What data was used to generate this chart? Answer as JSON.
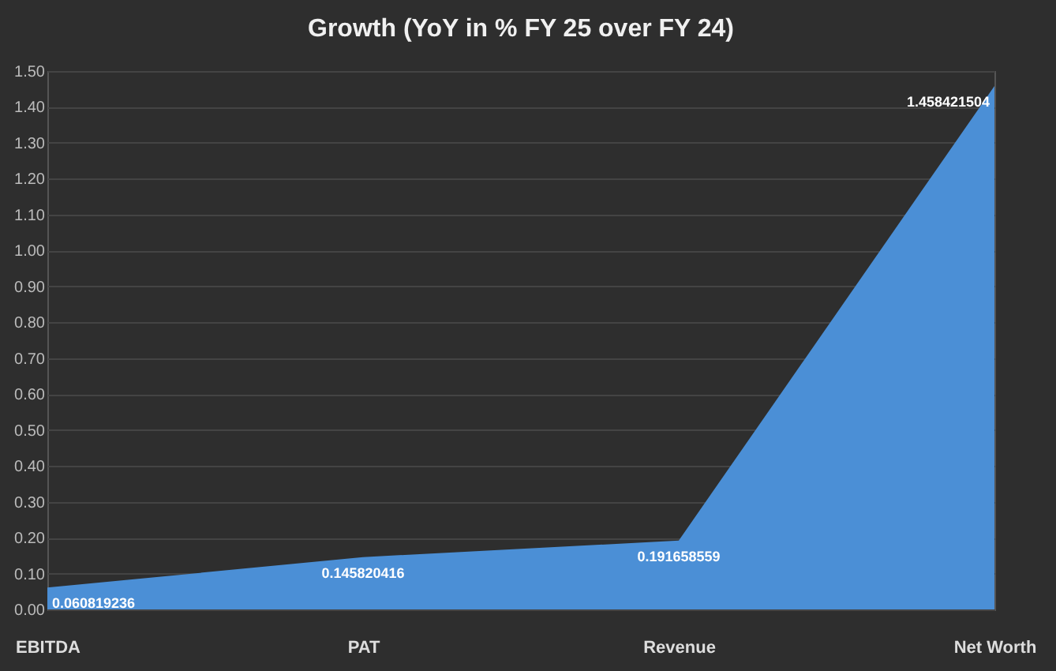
{
  "chart_data": {
    "type": "area",
    "title": "Growth (YoY in % FY 25 over FY 24)",
    "categories": [
      "EBITDA",
      "PAT",
      "Revenue",
      "Net Worth"
    ],
    "values": [
      0.060819236,
      0.145820416,
      0.191658559,
      1.458421504
    ],
    "color": "#4b8fd6",
    "data_labels": true,
    "grid": "y",
    "ylim": [
      0,
      1.5
    ],
    "yticks": [
      {
        "value": 0,
        "label": "0.00"
      },
      {
        "value": 0.1,
        "label": "0.10"
      },
      {
        "value": 0.2,
        "label": "0.20"
      },
      {
        "value": 0.3,
        "label": "0.30"
      },
      {
        "value": 0.4,
        "label": "0.40"
      },
      {
        "value": 0.5,
        "label": "0.50"
      },
      {
        "value": 0.6,
        "label": "0.60"
      },
      {
        "value": 0.7,
        "label": "0.70"
      },
      {
        "value": 0.8,
        "label": "0.80"
      },
      {
        "value": 0.9,
        "label": "0.90"
      },
      {
        "value": 1,
        "label": "1.00"
      },
      {
        "value": 1.1,
        "label": "1.10"
      },
      {
        "value": 1.2,
        "label": "1.20"
      },
      {
        "value": 1.3,
        "label": "1.30"
      },
      {
        "value": 1.4,
        "label": "1.40"
      },
      {
        "value": 1.5,
        "label": "1.50"
      }
    ]
  }
}
